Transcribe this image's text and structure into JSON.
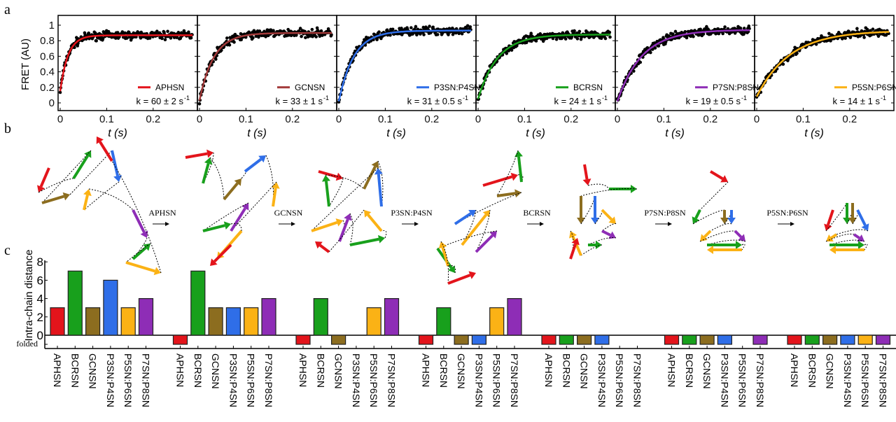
{
  "panel_labels": {
    "a": "a",
    "b": "b",
    "c": "c"
  },
  "colors": {
    "APHSN": "#e3141b",
    "GCNSN": "#8c6d1f",
    "GCNSN_fit": "#a23a3a",
    "P3SN:P4SN": "#2f6ee8",
    "BCRSN": "#18a01c",
    "P7SN:P8SN": "#8e2db6",
    "P5SN:P6SN": "#fbb215"
  },
  "chart_data": [
    {
      "type": "scatter",
      "panel": "a",
      "ylabel": "FRET (AU)",
      "xlabel": "t (s)",
      "xlim": [
        0,
        0.29
      ],
      "ylim": [
        -0.08,
        1.08
      ],
      "xticks": [
        "0",
        "0.1",
        "0.2"
      ],
      "yticks": [
        "0",
        "0.2",
        "0.4",
        "0.6",
        "0.8",
        "1"
      ],
      "grid": false,
      "legend": "bottom-right",
      "subplots": [
        {
          "name": "APHSN",
          "k_label": "k = 60 ± 2 s",
          "k_exp": "-1",
          "k": 60,
          "start": 0.15,
          "plateau": 0.87
        },
        {
          "name": "GCNSN",
          "k_label": "k = 33 ± 1 s",
          "k_exp": "-1",
          "k": 33,
          "start": 0.03,
          "plateau": 0.9
        },
        {
          "name": "P3SN:P4SN",
          "k_label": "k = 31 ± 0.5 s",
          "k_exp": "-1",
          "k": 31,
          "start": 0.02,
          "plateau": 0.93
        },
        {
          "name": "BCRSN",
          "k_label": "k = 24 ± 1 s",
          "k_exp": "-1",
          "k": 24,
          "start": 0.05,
          "plateau": 0.88
        },
        {
          "name": "P7SN:P8SN",
          "k_label": "k = 19 ± 0.5 s",
          "k_exp": "-1",
          "k": 19,
          "start": 0.02,
          "plateau": 0.94
        },
        {
          "name": "P5SN:P6SN",
          "k_label": "k = 14 ± 1 s",
          "k_exp": "-1",
          "k": 14,
          "start": 0.08,
          "plateau": 0.93
        }
      ]
    },
    {
      "type": "bar",
      "panel": "c",
      "ylabel": "Intra-chain distance",
      "folded_label": "folded",
      "ylim": [
        -1,
        8
      ],
      "yticks": [
        "0",
        "2",
        "4",
        "6",
        "8"
      ],
      "categories": [
        "APHSN",
        "BCRSN",
        "GCNSN",
        "P3SN:P4SN",
        "P5SN:P6SN",
        "P7SN:P8SN"
      ],
      "note": "value -1 = folded; null = no bar",
      "groups": [
        [
          3,
          7,
          3,
          6,
          3,
          4
        ],
        [
          -1,
          7,
          3,
          3,
          3,
          4
        ],
        [
          -1,
          4,
          -1,
          null,
          3,
          4
        ],
        [
          -1,
          3,
          -1,
          -1,
          3,
          4
        ],
        [
          -1,
          -1,
          -1,
          -1,
          null,
          null
        ],
        [
          -1,
          -1,
          -1,
          -1,
          null,
          -1
        ],
        [
          -1,
          -1,
          -1,
          -1,
          -1,
          -1
        ]
      ]
    }
  ],
  "diagram": {
    "steps": [
      "APHSN",
      "GCNSN",
      "P3SN:P4SN",
      "BCRSN",
      "P7SN:P8SN",
      "P5SN:P6SN"
    ]
  }
}
